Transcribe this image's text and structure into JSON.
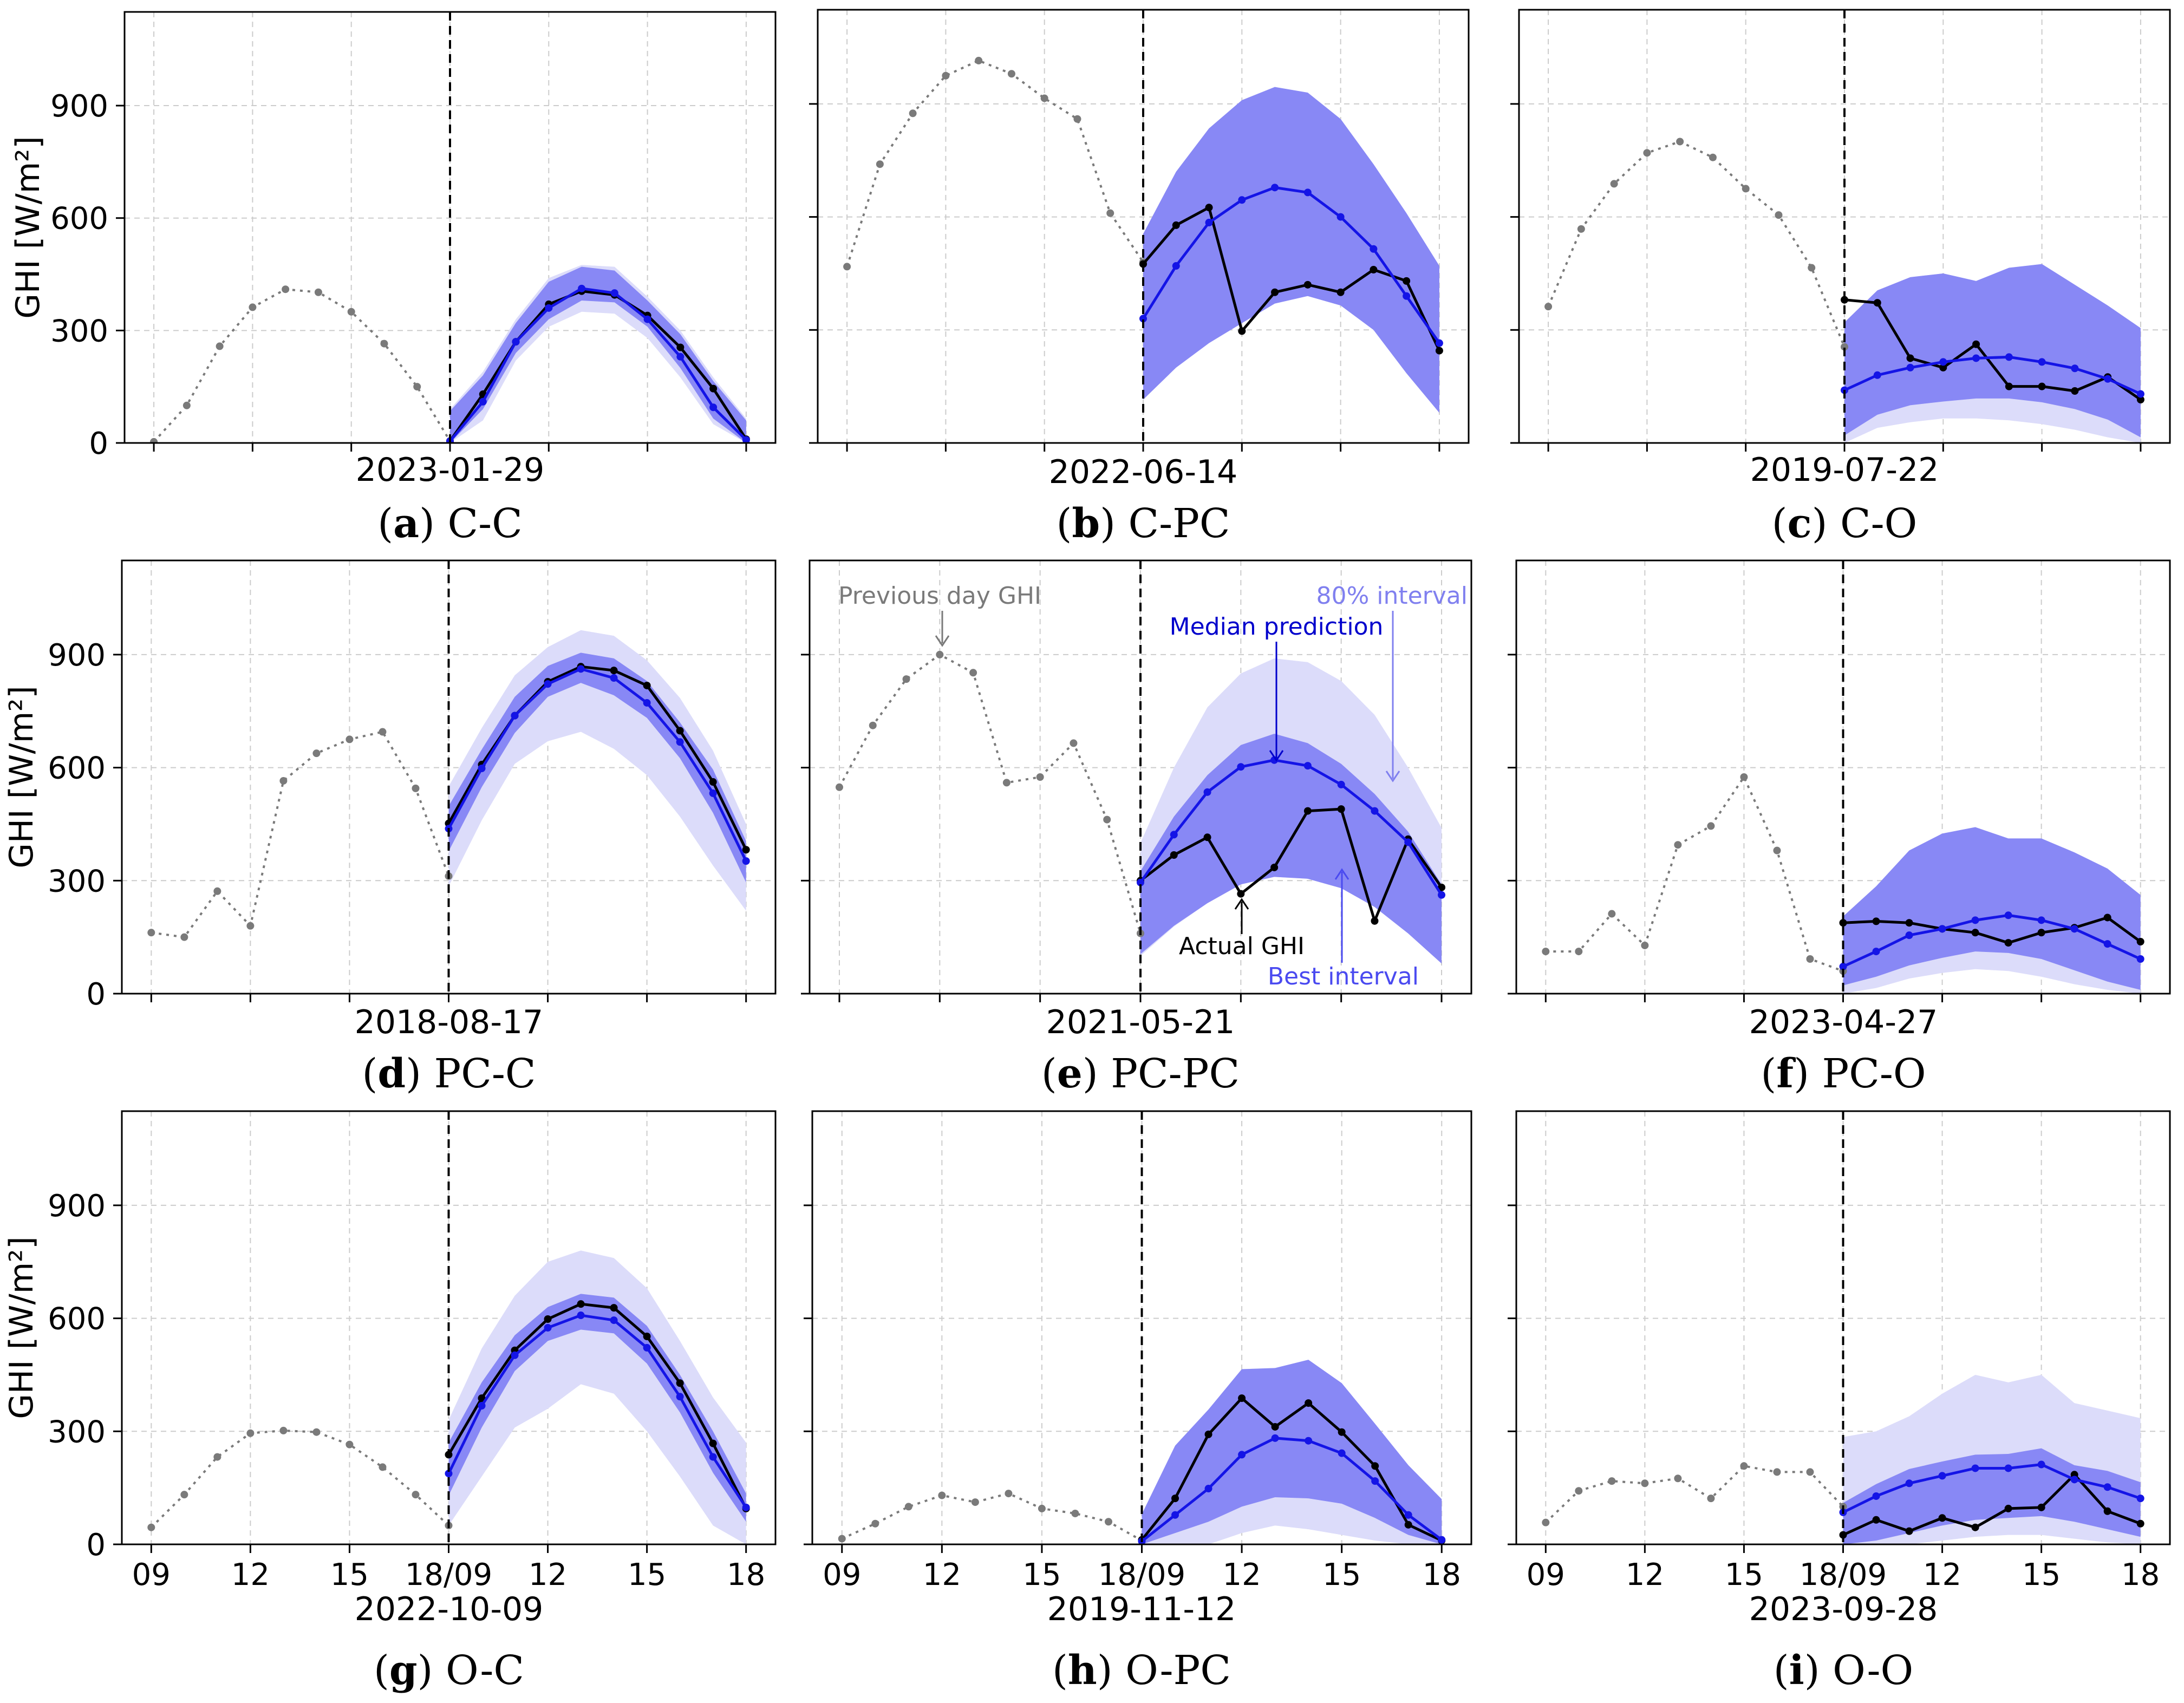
{
  "figure": {
    "ylabel": "GHI [W/m²]",
    "x_tick_labels": [
      "09",
      "12",
      "15",
      "18/09",
      "12",
      "15",
      "18"
    ],
    "y_tick_labels": [
      "0",
      "300",
      "600",
      "900"
    ],
    "colors": {
      "previous": "#7a7a7a",
      "actual": "#000000",
      "median": "#1414e6",
      "best_interval": "#8888f5",
      "wide_interval": "#dcdcfa"
    }
  },
  "annotations": {
    "previous_day": "Previous day GHI",
    "interval80": "80% interval",
    "median": "Median prediction",
    "actual": "Actual GHI",
    "best": "Best interval"
  },
  "chart_data": [
    {
      "type": "line",
      "letter": "a",
      "name": "C-C",
      "date": "2023-01-29",
      "x_hours": [
        9,
        10,
        11,
        12,
        13,
        14,
        15,
        16,
        17,
        18
      ],
      "ylim": [
        0,
        1150
      ],
      "previous_day": [
        3,
        100,
        258,
        362,
        410,
        402,
        350,
        265,
        150,
        5
      ],
      "actual": [
        5,
        130,
        270,
        370,
        405,
        395,
        340,
        255,
        145,
        10
      ],
      "median": [
        5,
        110,
        270,
        360,
        412,
        400,
        330,
        230,
        95,
        8
      ],
      "best_lower": [
        0,
        90,
        240,
        330,
        380,
        375,
        310,
        200,
        65,
        0
      ],
      "best_upper": [
        85,
        180,
        320,
        430,
        470,
        460,
        380,
        290,
        165,
        60
      ],
      "wide_lower": [
        0,
        60,
        220,
        310,
        350,
        345,
        280,
        175,
        50,
        0
      ],
      "wide_upper": [
        90,
        190,
        330,
        440,
        475,
        470,
        390,
        300,
        175,
        65
      ]
    },
    {
      "type": "line",
      "letter": "b",
      "name": "C-PC",
      "date": "2022-06-14",
      "x_hours": [
        9,
        10,
        11,
        12,
        13,
        14,
        15,
        16,
        17,
        18
      ],
      "ylim": [
        0,
        1150
      ],
      "previous_day": [
        468,
        740,
        875,
        975,
        1015,
        980,
        915,
        860,
        610,
        480
      ],
      "actual": [
        475,
        578,
        625,
        297,
        400,
        420,
        400,
        460,
        430,
        245
      ],
      "median": [
        330,
        470,
        585,
        645,
        678,
        665,
        600,
        515,
        390,
        265
      ],
      "best_lower": [
        115,
        200,
        265,
        318,
        370,
        390,
        365,
        300,
        185,
        80
      ],
      "best_upper": [
        555,
        720,
        835,
        910,
        945,
        930,
        860,
        740,
        610,
        470
      ],
      "wide_lower": [
        115,
        200,
        265,
        318,
        370,
        390,
        365,
        300,
        185,
        80
      ],
      "wide_upper": [
        555,
        720,
        835,
        910,
        945,
        930,
        860,
        740,
        610,
        470
      ]
    },
    {
      "type": "line",
      "letter": "c",
      "name": "C-O",
      "date": "2019-07-22",
      "x_hours": [
        9,
        10,
        11,
        12,
        13,
        14,
        15,
        16,
        17,
        18
      ],
      "ylim": [
        0,
        1150
      ],
      "previous_day": [
        362,
        568,
        688,
        770,
        800,
        758,
        675,
        605,
        465,
        255
      ],
      "actual": [
        380,
        372,
        225,
        200,
        262,
        150,
        150,
        138,
        175,
        115
      ],
      "median": [
        140,
        180,
        200,
        215,
        225,
        228,
        215,
        198,
        170,
        130
      ],
      "best_lower": [
        20,
        75,
        100,
        110,
        118,
        118,
        108,
        90,
        62,
        15
      ],
      "best_upper": [
        320,
        405,
        440,
        450,
        430,
        465,
        475,
        420,
        365,
        305
      ],
      "wide_lower": [
        0,
        40,
        55,
        65,
        65,
        60,
        50,
        35,
        15,
        0
      ],
      "wide_upper": [
        320,
        405,
        440,
        450,
        430,
        465,
        475,
        420,
        365,
        305
      ]
    },
    {
      "type": "line",
      "letter": "d",
      "name": "PC-C",
      "date": "2018-08-17",
      "x_hours": [
        9,
        10,
        11,
        12,
        13,
        14,
        15,
        16,
        17,
        18
      ],
      "ylim": [
        0,
        1150
      ],
      "previous_day": [
        162,
        150,
        272,
        180,
        565,
        638,
        675,
        695,
        545,
        312
      ],
      "actual": [
        452,
        608,
        738,
        828,
        868,
        858,
        818,
        698,
        562,
        382
      ],
      "median": [
        438,
        598,
        738,
        822,
        862,
        838,
        772,
        668,
        532,
        352
      ],
      "best_lower": [
        378,
        548,
        692,
        788,
        825,
        792,
        732,
        625,
        480,
        295
      ],
      "best_upper": [
        498,
        648,
        788,
        870,
        905,
        890,
        830,
        720,
        595,
        405
      ],
      "wide_lower": [
        285,
        460,
        610,
        670,
        695,
        650,
        580,
        470,
        340,
        220
      ],
      "wide_upper": [
        550,
        705,
        845,
        920,
        965,
        950,
        885,
        785,
        645,
        450
      ]
    },
    {
      "type": "line",
      "letter": "e",
      "name": "PC-PC",
      "date": "2021-05-21",
      "x_hours": [
        9,
        10,
        11,
        12,
        13,
        14,
        15,
        16,
        17,
        18
      ],
      "ylim": [
        0,
        1150
      ],
      "previous_day": [
        548,
        712,
        835,
        900,
        852,
        560,
        575,
        665,
        462,
        160
      ],
      "actual": [
        300,
        368,
        415,
        265,
        335,
        485,
        490,
        193,
        410,
        282
      ],
      "median": [
        295,
        422,
        535,
        602,
        620,
        605,
        555,
        485,
        402,
        262
      ],
      "best_lower": [
        105,
        180,
        240,
        290,
        310,
        305,
        280,
        230,
        160,
        80
      ],
      "best_upper": [
        325,
        470,
        580,
        660,
        690,
        665,
        610,
        530,
        430,
        290
      ],
      "wide_lower": [
        100,
        178,
        240,
        290,
        310,
        305,
        280,
        230,
        160,
        80
      ],
      "wide_upper": [
        400,
        600,
        760,
        850,
        890,
        880,
        830,
        740,
        600,
        440
      ]
    },
    {
      "type": "line",
      "letter": "f",
      "name": "PC-O",
      "date": "2023-04-27",
      "x_hours": [
        9,
        10,
        11,
        12,
        13,
        14,
        15,
        16,
        17,
        18
      ],
      "ylim": [
        0,
        1150
      ],
      "previous_day": [
        112,
        112,
        212,
        128,
        395,
        445,
        575,
        380,
        92,
        60
      ],
      "actual": [
        188,
        192,
        188,
        172,
        162,
        135,
        162,
        175,
        202,
        138
      ],
      "median": [
        72,
        112,
        155,
        172,
        195,
        208,
        195,
        172,
        132,
        92
      ],
      "best_lower": [
        22,
        45,
        75,
        95,
        112,
        108,
        92,
        62,
        32,
        10
      ],
      "best_upper": [
        205,
        285,
        380,
        425,
        442,
        412,
        412,
        375,
        332,
        262
      ],
      "wide_lower": [
        0,
        15,
        40,
        55,
        65,
        60,
        45,
        25,
        10,
        0
      ],
      "wide_upper": [
        205,
        285,
        380,
        425,
        442,
        412,
        412,
        375,
        332,
        262
      ]
    },
    {
      "type": "line",
      "letter": "g",
      "name": "O-C",
      "date": "2022-10-09",
      "x_hours": [
        9,
        10,
        11,
        12,
        13,
        14,
        15,
        16,
        17,
        18
      ],
      "ylim": [
        0,
        1150
      ],
      "previous_day": [
        45,
        132,
        232,
        295,
        302,
        298,
        265,
        205,
        132,
        50
      ],
      "actual": [
        238,
        388,
        515,
        598,
        638,
        628,
        552,
        428,
        268,
        95
      ],
      "median": [
        188,
        368,
        502,
        575,
        608,
        595,
        522,
        392,
        232,
        98
      ],
      "best_lower": [
        130,
        310,
        460,
        540,
        570,
        560,
        480,
        350,
        190,
        60
      ],
      "best_upper": [
        270,
        430,
        555,
        630,
        665,
        655,
        580,
        450,
        300,
        135
      ],
      "wide_lower": [
        50,
        180,
        310,
        360,
        425,
        400,
        300,
        180,
        50,
        0
      ],
      "wide_upper": [
        330,
        520,
        660,
        750,
        780,
        760,
        680,
        540,
        390,
        270
      ]
    },
    {
      "type": "line",
      "letter": "h",
      "name": "O-PC",
      "date": "2019-11-12",
      "x_hours": [
        9,
        10,
        11,
        12,
        13,
        14,
        15,
        16,
        17,
        18
      ],
      "ylim": [
        0,
        1150
      ],
      "previous_day": [
        15,
        55,
        100,
        130,
        112,
        135,
        95,
        82,
        60,
        10
      ],
      "actual": [
        12,
        122,
        292,
        388,
        312,
        375,
        298,
        208,
        52,
        10
      ],
      "median": [
        8,
        78,
        148,
        238,
        282,
        275,
        242,
        168,
        78,
        12
      ],
      "best_lower": [
        0,
        30,
        60,
        100,
        125,
        122,
        108,
        70,
        25,
        0
      ],
      "best_upper": [
        80,
        262,
        358,
        465,
        468,
        490,
        428,
        320,
        210,
        120
      ],
      "wide_lower": [
        0,
        0,
        0,
        30,
        50,
        40,
        25,
        10,
        0,
        0
      ],
      "wide_upper": [
        80,
        262,
        358,
        465,
        468,
        490,
        428,
        320,
        210,
        120
      ]
    },
    {
      "type": "line",
      "letter": "i",
      "name": "O-O",
      "date": "2023-09-28",
      "x_hours": [
        9,
        10,
        11,
        12,
        13,
        14,
        15,
        16,
        17,
        18
      ],
      "ylim": [
        0,
        1150
      ],
      "previous_day": [
        58,
        142,
        168,
        162,
        175,
        122,
        208,
        192,
        192,
        100
      ],
      "actual": [
        25,
        65,
        35,
        70,
        45,
        95,
        98,
        185,
        88,
        55
      ],
      "median": [
        85,
        128,
        162,
        182,
        202,
        202,
        212,
        172,
        152,
        122
      ],
      "best_lower": [
        0,
        10,
        30,
        50,
        65,
        70,
        75,
        60,
        40,
        20
      ],
      "best_upper": [
        110,
        160,
        200,
        220,
        238,
        240,
        255,
        210,
        195,
        165
      ],
      "wide_lower": [
        0,
        0,
        0,
        10,
        20,
        25,
        25,
        15,
        5,
        0
      ],
      "wide_upper": [
        285,
        300,
        340,
        400,
        450,
        430,
        450,
        375,
        355,
        335
      ]
    }
  ]
}
